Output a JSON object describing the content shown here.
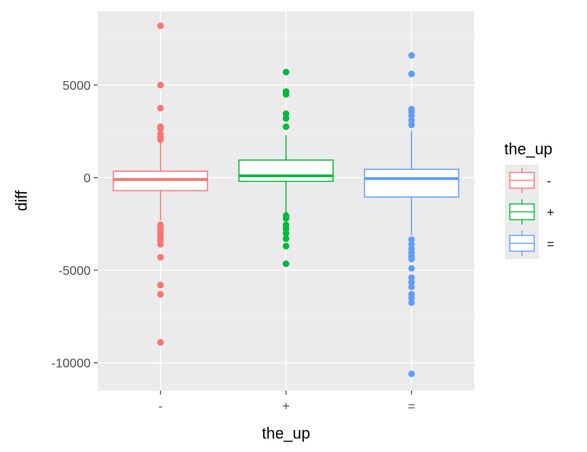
{
  "chart_data": {
    "type": "boxplot",
    "xlabel": "the_up",
    "ylabel": "diff",
    "ylim": [
      -11500,
      9000
    ],
    "yticks": [
      -10000,
      -5000,
      0,
      5000
    ],
    "ytick_labels": [
      "-10000",
      "-5000",
      "0",
      "5000"
    ],
    "categories": [
      "-",
      "+",
      "="
    ],
    "grid": true,
    "legend": {
      "title": "the_up",
      "placement": "right",
      "entries": [
        "-",
        "+",
        "="
      ]
    },
    "series": [
      {
        "name": "-",
        "color": "#F8766D",
        "whisker_low": -2300,
        "q1": -700,
        "median": -100,
        "q3": 350,
        "whisker_high": 1900,
        "outliers": [
          8200,
          5000,
          3750,
          2750,
          2650,
          2350,
          2200,
          2050,
          -2550,
          -2700,
          -2850,
          -3000,
          -3200,
          -3400,
          -3600,
          -4300,
          -5800,
          -6300,
          -8900
        ]
      },
      {
        "name": "+",
        "color": "#00BA38",
        "whisker_low": -1900,
        "q1": -200,
        "median": 100,
        "q3": 950,
        "whisker_high": 2300,
        "outliers": [
          5700,
          4650,
          4500,
          3450,
          3200,
          2750,
          -2050,
          -2200,
          -2550,
          -2750,
          -3000,
          -3300,
          -3700,
          -4650
        ]
      },
      {
        "name": "=",
        "color": "#619CFF",
        "whisker_low": -3100,
        "q1": -1050,
        "median": -50,
        "q3": 450,
        "whisker_high": 2550,
        "outliers": [
          6600,
          5600,
          3700,
          3550,
          3350,
          3100,
          2850,
          -3350,
          -3600,
          -3850,
          -4050,
          -4250,
          -4400,
          -4900,
          -5400,
          -5650,
          -5900,
          -6300,
          -6500,
          -6750,
          -10600
        ]
      }
    ]
  },
  "colors": {
    "panel_background": "#EBEBEB",
    "grid_major": "#FFFFFF",
    "grid_minor": "#F2F2F2",
    "text_axis": "#4D4D4D"
  }
}
